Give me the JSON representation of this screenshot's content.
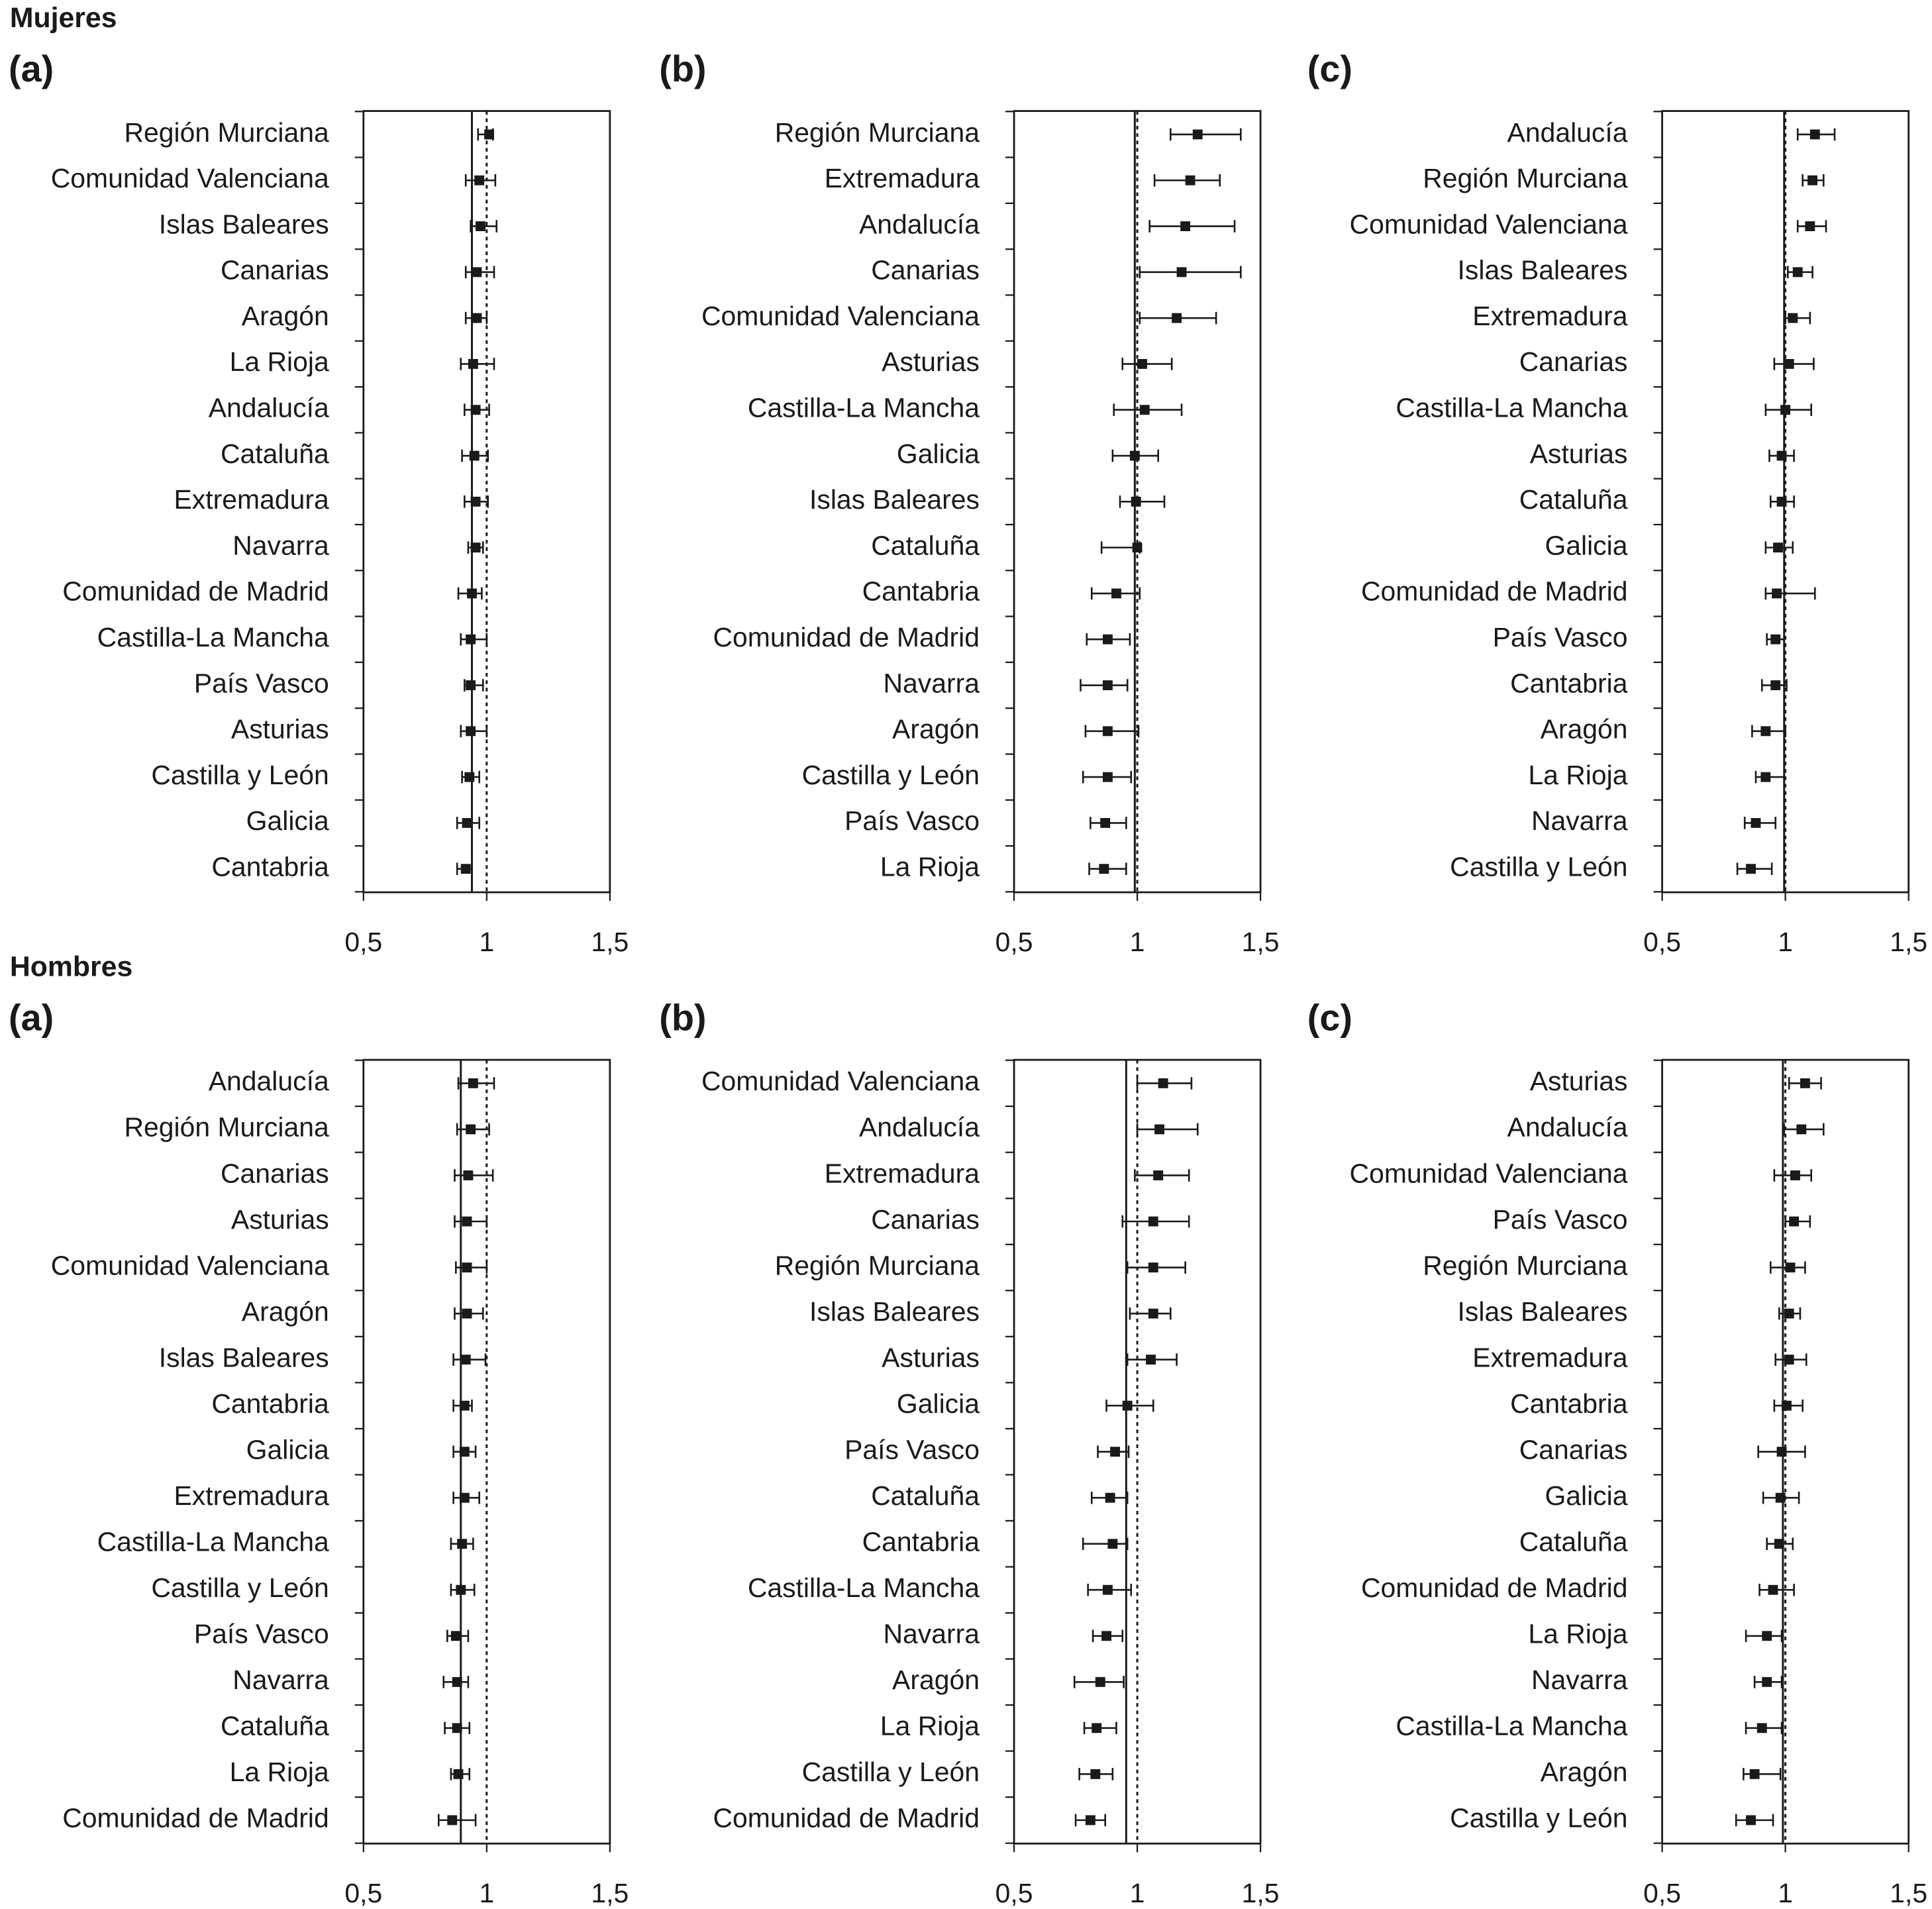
{
  "headings": [
    "Mujeres",
    "Hombres"
  ],
  "chart_data": [
    {
      "type": "forest",
      "title": "(a)",
      "xlim": [
        0.5,
        1.5
      ],
      "xticks": [
        {
          "value": 0.5,
          "label": "0,5"
        },
        1,
        {
          "value": 1.5,
          "label": "1,5"
        }
      ],
      "color": "#1a1a1a",
      "ref_lines": [
        {
          "value": 0.94,
          "style": "solid"
        },
        {
          "value": 1,
          "style": "dotted"
        }
      ],
      "categories": [
        "Región Murciana",
        "Comunidad Valenciana",
        "Islas Baleares",
        "Canarias",
        "Aragón",
        "La Rioja",
        "Andalucía",
        "Cataluña",
        "Extremadura",
        "Navarra",
        "Comunidad de Madrid",
        "Castilla-La Mancha",
        "País Vasco",
        "Asturias",
        "Castilla y León",
        "Galicia",
        "Cantabria"
      ],
      "values": [
        1.01,
        0.97,
        0.975,
        0.96,
        0.96,
        0.945,
        0.955,
        0.95,
        0.955,
        0.955,
        0.94,
        0.935,
        0.935,
        0.935,
        0.93,
        0.92,
        0.915
      ],
      "lower": [
        0.965,
        0.915,
        0.935,
        0.915,
        0.915,
        0.895,
        0.91,
        0.9,
        0.91,
        0.925,
        0.885,
        0.895,
        0.91,
        0.895,
        0.9,
        0.88,
        0.88
      ],
      "upper": [
        1.025,
        1.035,
        1.04,
        1.03,
        1.0,
        1.03,
        1.01,
        1.005,
        1.005,
        0.985,
        0.98,
        1.0,
        0.985,
        1.0,
        0.97,
        0.97,
        0.94
      ]
    },
    {
      "type": "forest",
      "title": "(b)",
      "xlim": [
        0.5,
        1.5
      ],
      "xticks": [
        {
          "value": 0.5,
          "label": "0,5"
        },
        1,
        {
          "value": 1.5,
          "label": "1,5"
        }
      ],
      "color": "#1a1a1a",
      "ref_lines": [
        {
          "value": 0.99,
          "style": "solid"
        },
        {
          "value": 1,
          "style": "dotted"
        }
      ],
      "categories": [
        "Región Murciana",
        "Extremadura",
        "Andalucía",
        "Canarias",
        "Comunidad Valenciana",
        "Asturias",
        "Castilla-La Mancha",
        "Galicia",
        "Islas Baleares",
        "Cataluña",
        "Cantabria",
        "Comunidad de Madrid",
        "Navarra",
        "Aragón",
        "Castilla y León",
        "País Vasco",
        "La Rioja"
      ],
      "values": [
        1.245,
        1.215,
        1.195,
        1.18,
        1.16,
        1.02,
        1.03,
        0.99,
        0.995,
        1.0,
        0.915,
        0.88,
        0.88,
        0.88,
        0.88,
        0.87,
        0.865
      ],
      "lower": [
        1.135,
        1.07,
        1.05,
        1.01,
        1.01,
        0.94,
        0.905,
        0.9,
        0.93,
        0.855,
        0.815,
        0.795,
        0.77,
        0.79,
        0.78,
        0.81,
        0.805
      ],
      "upper": [
        1.42,
        1.335,
        1.395,
        1.42,
        1.32,
        1.14,
        1.18,
        1.085,
        1.11,
        1.01,
        1.01,
        0.97,
        0.96,
        1.005,
        0.975,
        0.955,
        0.955
      ]
    },
    {
      "type": "forest",
      "title": "(c)",
      "xlim": [
        0.5,
        1.5
      ],
      "xticks": [
        {
          "value": 0.5,
          "label": "0,5"
        },
        1,
        {
          "value": 1.5,
          "label": "1,5"
        }
      ],
      "color": "#1a1a1a",
      "ref_lines": [
        {
          "value": 0.995,
          "style": "solid"
        },
        {
          "value": 1,
          "style": "dotted"
        }
      ],
      "categories": [
        "Andalucía",
        "Región Murciana",
        "Comunidad Valenciana",
        "Islas Baleares",
        "Extremadura",
        "Canarias",
        "Castilla-La Mancha",
        "Asturias",
        "Cataluña",
        "Galicia",
        "Comunidad de Madrid",
        "País Vasco",
        "Cantabria",
        "Aragón",
        "La Rioja",
        "Navarra",
        "Castilla y León"
      ],
      "values": [
        1.12,
        1.11,
        1.1,
        1.05,
        1.03,
        1.015,
        1.0,
        0.985,
        0.985,
        0.97,
        0.965,
        0.96,
        0.96,
        0.92,
        0.92,
        0.88,
        0.86
      ],
      "lower": [
        1.05,
        1.07,
        1.05,
        1.01,
        1.0,
        0.955,
        0.92,
        0.935,
        0.94,
        0.92,
        0.92,
        0.925,
        0.905,
        0.865,
        0.88,
        0.835,
        0.805
      ],
      "upper": [
        1.2,
        1.155,
        1.165,
        1.11,
        1.1,
        1.115,
        1.105,
        1.035,
        1.035,
        1.03,
        1.12,
        0.995,
        1.005,
        1.0,
        0.995,
        0.96,
        0.945
      ]
    },
    {
      "type": "forest",
      "title": "(a)",
      "xlim": [
        0.5,
        1.5
      ],
      "xticks": [
        {
          "value": 0.5,
          "label": "0,5"
        },
        1,
        {
          "value": 1.5,
          "label": "1,5"
        }
      ],
      "color": "#1a1a1a",
      "ref_lines": [
        {
          "value": 0.895,
          "style": "solid"
        },
        {
          "value": 1,
          "style": "dotted"
        }
      ],
      "categories": [
        "Andalucía",
        "Región Murciana",
        "Canarias",
        "Asturias",
        "Comunidad Valenciana",
        "Aragón",
        "Islas Baleares",
        "Cantabria",
        "Galicia",
        "Extremadura",
        "Castilla-La Mancha",
        "Castilla y León",
        "País Vasco",
        "Navarra",
        "Cataluña",
        "La Rioja",
        "Comunidad de Madrid"
      ],
      "values": [
        0.945,
        0.935,
        0.925,
        0.92,
        0.92,
        0.92,
        0.915,
        0.91,
        0.91,
        0.91,
        0.9,
        0.895,
        0.875,
        0.88,
        0.88,
        0.885,
        0.86
      ],
      "lower": [
        0.885,
        0.88,
        0.87,
        0.87,
        0.875,
        0.87,
        0.865,
        0.865,
        0.865,
        0.865,
        0.855,
        0.855,
        0.84,
        0.825,
        0.83,
        0.855,
        0.805
      ],
      "upper": [
        1.03,
        1.01,
        1.025,
        1.0,
        1.0,
        0.985,
        0.995,
        0.94,
        0.955,
        0.97,
        0.945,
        0.95,
        0.925,
        0.925,
        0.93,
        0.93,
        0.955
      ]
    },
    {
      "type": "forest",
      "title": "(b)",
      "xlim": [
        0.5,
        1.5
      ],
      "xticks": [
        {
          "value": 0.5,
          "label": "0,5"
        },
        1,
        {
          "value": 1.5,
          "label": "1,5"
        }
      ],
      "color": "#1a1a1a",
      "ref_lines": [
        {
          "value": 0.955,
          "style": "solid"
        },
        {
          "value": 1,
          "style": "dotted"
        }
      ],
      "categories": [
        "Comunidad Valenciana",
        "Andalucía",
        "Extremadura",
        "Canarias",
        "Región Murciana",
        "Islas Baleares",
        "Asturias",
        "Galicia",
        "País Vasco",
        "Cataluña",
        "Cantabria",
        "Castilla-La Mancha",
        "Navarra",
        "Aragón",
        "La Rioja",
        "Castilla y León",
        "Comunidad de Madrid"
      ],
      "values": [
        1.105,
        1.09,
        1.085,
        1.065,
        1.065,
        1.065,
        1.055,
        0.96,
        0.91,
        0.89,
        0.9,
        0.88,
        0.875,
        0.85,
        0.835,
        0.83,
        0.81
      ],
      "lower": [
        1.0,
        1.0,
        0.99,
        0.94,
        0.96,
        0.97,
        0.96,
        0.875,
        0.84,
        0.815,
        0.78,
        0.8,
        0.82,
        0.745,
        0.785,
        0.765,
        0.75
      ],
      "upper": [
        1.22,
        1.245,
        1.21,
        1.21,
        1.195,
        1.135,
        1.16,
        1.065,
        0.965,
        0.96,
        0.96,
        0.975,
        0.94,
        0.945,
        0.915,
        0.9,
        0.87
      ]
    },
    {
      "type": "forest",
      "title": "(c)",
      "xlim": [
        0.5,
        1.5
      ],
      "xticks": [
        {
          "value": 0.5,
          "label": "0,5"
        },
        1,
        {
          "value": 1.5,
          "label": "1,5"
        }
      ],
      "color": "#1a1a1a",
      "ref_lines": [
        {
          "value": 0.99,
          "style": "solid"
        },
        {
          "value": 1,
          "style": "dotted"
        }
      ],
      "categories": [
        "Asturias",
        "Andalucía",
        "Comunidad Valenciana",
        "País Vasco",
        "Región Murciana",
        "Islas Baleares",
        "Extremadura",
        "Cantabria",
        "Canarias",
        "Galicia",
        "Cataluña",
        "Comunidad de Madrid",
        "La Rioja",
        "Navarra",
        "Castilla-La Mancha",
        "Aragón",
        "Castilla y León"
      ],
      "values": [
        1.08,
        1.065,
        1.04,
        1.035,
        1.02,
        1.015,
        1.015,
        1.005,
        0.985,
        0.98,
        0.975,
        0.95,
        0.925,
        0.925,
        0.905,
        0.875,
        0.86
      ],
      "lower": [
        1.015,
        0.995,
        0.955,
        1.0,
        0.94,
        0.975,
        0.96,
        0.955,
        0.89,
        0.91,
        0.925,
        0.895,
        0.84,
        0.875,
        0.84,
        0.83,
        0.8
      ],
      "upper": [
        1.145,
        1.155,
        1.105,
        1.1,
        1.08,
        1.06,
        1.085,
        1.07,
        1.08,
        1.055,
        1.03,
        1.035,
        0.985,
        0.985,
        0.985,
        0.98,
        0.95
      ]
    }
  ]
}
